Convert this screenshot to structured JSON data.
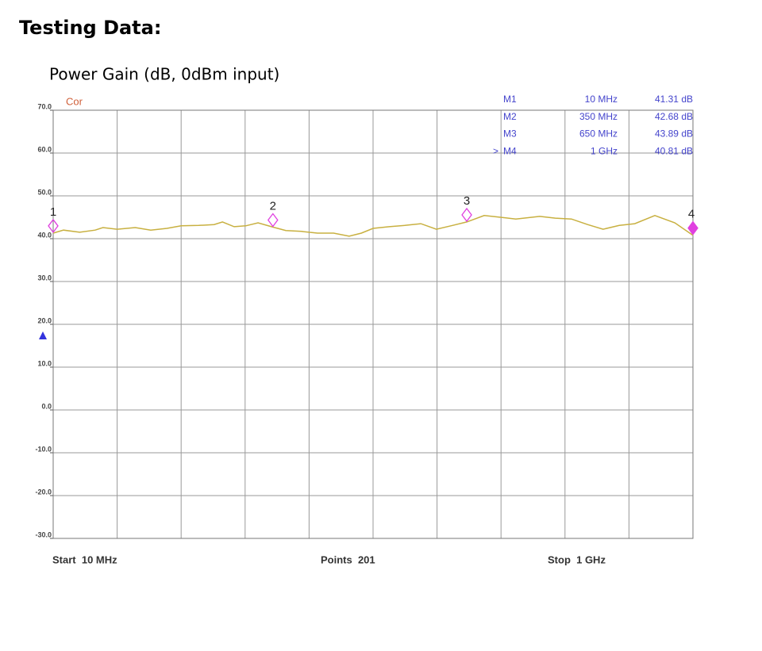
{
  "heading": "Testing Data:",
  "chart_data": {
    "type": "line",
    "title": "Power Gain (dB, 0dBm input)",
    "status_label": "Cor",
    "x": [
      10,
      26,
      51,
      75,
      87,
      109,
      137,
      161,
      186,
      208,
      235,
      259,
      272,
      290,
      308,
      327,
      350,
      370,
      394,
      419,
      444,
      468,
      487,
      505,
      530,
      554,
      579,
      603,
      628,
      650,
      677,
      702,
      726,
      763,
      787,
      812,
      837,
      861,
      886,
      910,
      941,
      972,
      1000
    ],
    "values": [
      41.3,
      42.0,
      41.5,
      42.0,
      42.6,
      42.2,
      42.6,
      42.0,
      42.4,
      43.0,
      43.1,
      43.3,
      43.9,
      42.8,
      43.0,
      43.7,
      42.7,
      41.9,
      41.7,
      41.3,
      41.3,
      40.6,
      41.3,
      42.4,
      42.8,
      43.1,
      43.5,
      42.2,
      43.1,
      43.9,
      45.4,
      45.0,
      44.6,
      45.2,
      44.8,
      44.6,
      43.3,
      42.2,
      43.1,
      43.5,
      45.4,
      43.7,
      40.8
    ],
    "color": "#c8b040",
    "xlim": [
      10,
      1000
    ],
    "ylim": [
      -30,
      70
    ],
    "yticks": [
      {
        "value": -30,
        "label": "-30.0"
      },
      {
        "value": -20,
        "label": "-20.0"
      },
      {
        "value": -10,
        "label": "-10.0"
      },
      {
        "value": 0,
        "label": "0.0"
      },
      {
        "value": 10,
        "label": "10.0"
      },
      {
        "value": 20,
        "label": "20.0"
      },
      {
        "value": 30,
        "label": "30.0"
      },
      {
        "value": 40,
        "label": "40.0"
      },
      {
        "value": 50,
        "label": "50.0"
      },
      {
        "value": 60,
        "label": "60.0"
      },
      {
        "value": 70,
        "label": "70.0"
      }
    ],
    "x_divisions": 10,
    "grid": true,
    "reference_level": 20,
    "start_label": "Start  10 MHz",
    "points_label": "Points  201",
    "stop_label": "Stop  1 GHz",
    "active_indicator": ">",
    "active_marker": 3,
    "marker_color": "#e040e0",
    "markers": [
      {
        "name": "M1",
        "tag": "1",
        "x": 10,
        "x_label": "10 MHz",
        "value": 41.31,
        "value_label": "41.31 dB"
      },
      {
        "name": "M2",
        "tag": "2",
        "x": 350,
        "x_label": "350 MHz",
        "value": 42.68,
        "value_label": "42.68 dB"
      },
      {
        "name": "M3",
        "tag": "3",
        "x": 650,
        "x_label": "650 MHz",
        "value": 43.89,
        "value_label": "43.89 dB"
      },
      {
        "name": "M4",
        "tag": "4",
        "x": 1000,
        "x_label": "1 GHz",
        "value": 40.81,
        "value_label": "40.81 dB"
      }
    ]
  }
}
